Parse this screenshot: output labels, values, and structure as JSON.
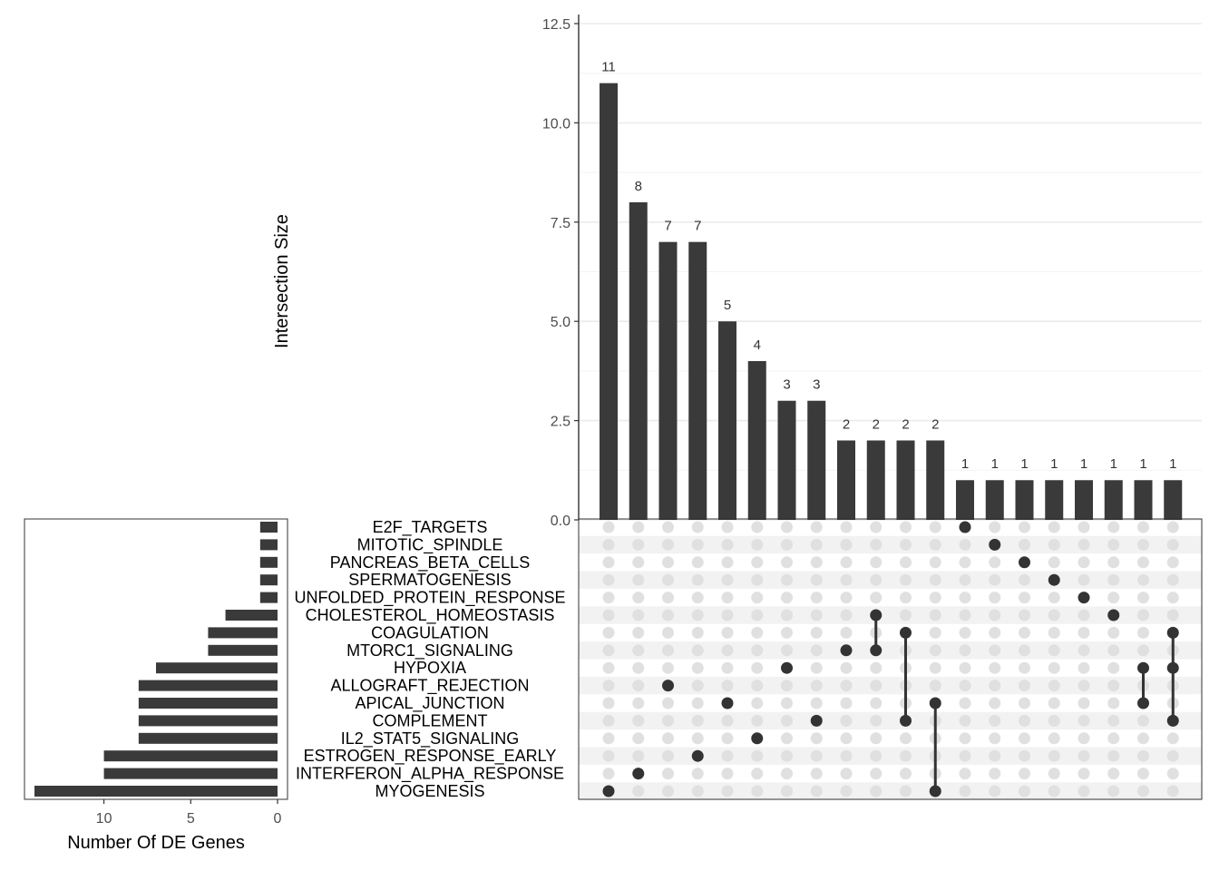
{
  "chart_data": {
    "type": "upset",
    "ylabel": "Intersection Size",
    "xlabel_sets": "Number Of DE Genes",
    "y_ticks": [
      "0.0",
      "2.5",
      "5.0",
      "7.5",
      "10.0",
      "12.5"
    ],
    "ylim": [
      0,
      12.5
    ],
    "set_size_ticks": [
      "10",
      "5",
      "0"
    ],
    "set_size_ticks_values": [
      10,
      5,
      0
    ],
    "set_size_max": 14.5,
    "sets": [
      "E2F_TARGETS",
      "MITOTIC_SPINDLE",
      "PANCREAS_BETA_CELLS",
      "SPERMATOGENESIS",
      "UNFOLDED_PROTEIN_RESPONSE",
      "CHOLESTEROL_HOMEOSTASIS",
      "COAGULATION",
      "MTORC1_SIGNALING",
      "HYPOXIA",
      "ALLOGRAFT_REJECTION",
      "APICAL_JUNCTION",
      "COMPLEMENT",
      "IL2_STAT5_SIGNALING",
      "ESTROGEN_RESPONSE_EARLY",
      "INTERFERON_ALPHA_RESPONSE",
      "MYOGENESIS"
    ],
    "set_sizes": [
      1,
      1,
      1,
      1,
      1,
      3,
      4,
      4,
      7,
      8,
      8,
      8,
      8,
      10,
      10,
      14
    ],
    "intersections": [
      {
        "size": 11,
        "label": "11",
        "members": [
          "MYOGENESIS"
        ]
      },
      {
        "size": 8,
        "label": "8",
        "members": [
          "INTERFERON_ALPHA_RESPONSE"
        ]
      },
      {
        "size": 7,
        "label": "7",
        "members": [
          "ALLOGRAFT_REJECTION"
        ]
      },
      {
        "size": 7,
        "label": "7",
        "members": [
          "ESTROGEN_RESPONSE_EARLY"
        ]
      },
      {
        "size": 5,
        "label": "5",
        "members": [
          "APICAL_JUNCTION"
        ]
      },
      {
        "size": 4,
        "label": "4",
        "members": [
          "IL2_STAT5_SIGNALING"
        ]
      },
      {
        "size": 3,
        "label": "3",
        "members": [
          "HYPOXIA"
        ]
      },
      {
        "size": 3,
        "label": "3",
        "members": [
          "COMPLEMENT"
        ]
      },
      {
        "size": 2,
        "label": "2",
        "members": [
          "MTORC1_SIGNALING"
        ]
      },
      {
        "size": 2,
        "label": "2",
        "members": [
          "CHOLESTEROL_HOMEOSTASIS",
          "MTORC1_SIGNALING"
        ]
      },
      {
        "size": 2,
        "label": "2",
        "members": [
          "COAGULATION",
          "COMPLEMENT"
        ]
      },
      {
        "size": 2,
        "label": "2",
        "members": [
          "APICAL_JUNCTION",
          "MYOGENESIS"
        ]
      },
      {
        "size": 1,
        "label": "1",
        "members": [
          "E2F_TARGETS"
        ]
      },
      {
        "size": 1,
        "label": "1",
        "members": [
          "MITOTIC_SPINDLE"
        ]
      },
      {
        "size": 1,
        "label": "1",
        "members": [
          "PANCREAS_BETA_CELLS"
        ]
      },
      {
        "size": 1,
        "label": "1",
        "members": [
          "SPERMATOGENESIS"
        ]
      },
      {
        "size": 1,
        "label": "1",
        "members": [
          "UNFOLDED_PROTEIN_RESPONSE"
        ]
      },
      {
        "size": 1,
        "label": "1",
        "members": [
          "CHOLESTEROL_HOMEOSTASIS"
        ]
      },
      {
        "size": 1,
        "label": "1",
        "members": [
          "HYPOXIA",
          "APICAL_JUNCTION"
        ]
      },
      {
        "size": 1,
        "label": "1",
        "members": [
          "COAGULATION",
          "HYPOXIA",
          "COMPLEMENT"
        ]
      }
    ],
    "colors": {
      "bar": "#3a3a3a",
      "dot_active": "#333333",
      "dot_inactive": "#e0e0e0",
      "stripe": "#f2f2f2",
      "grid": "#ebebeb"
    }
  }
}
